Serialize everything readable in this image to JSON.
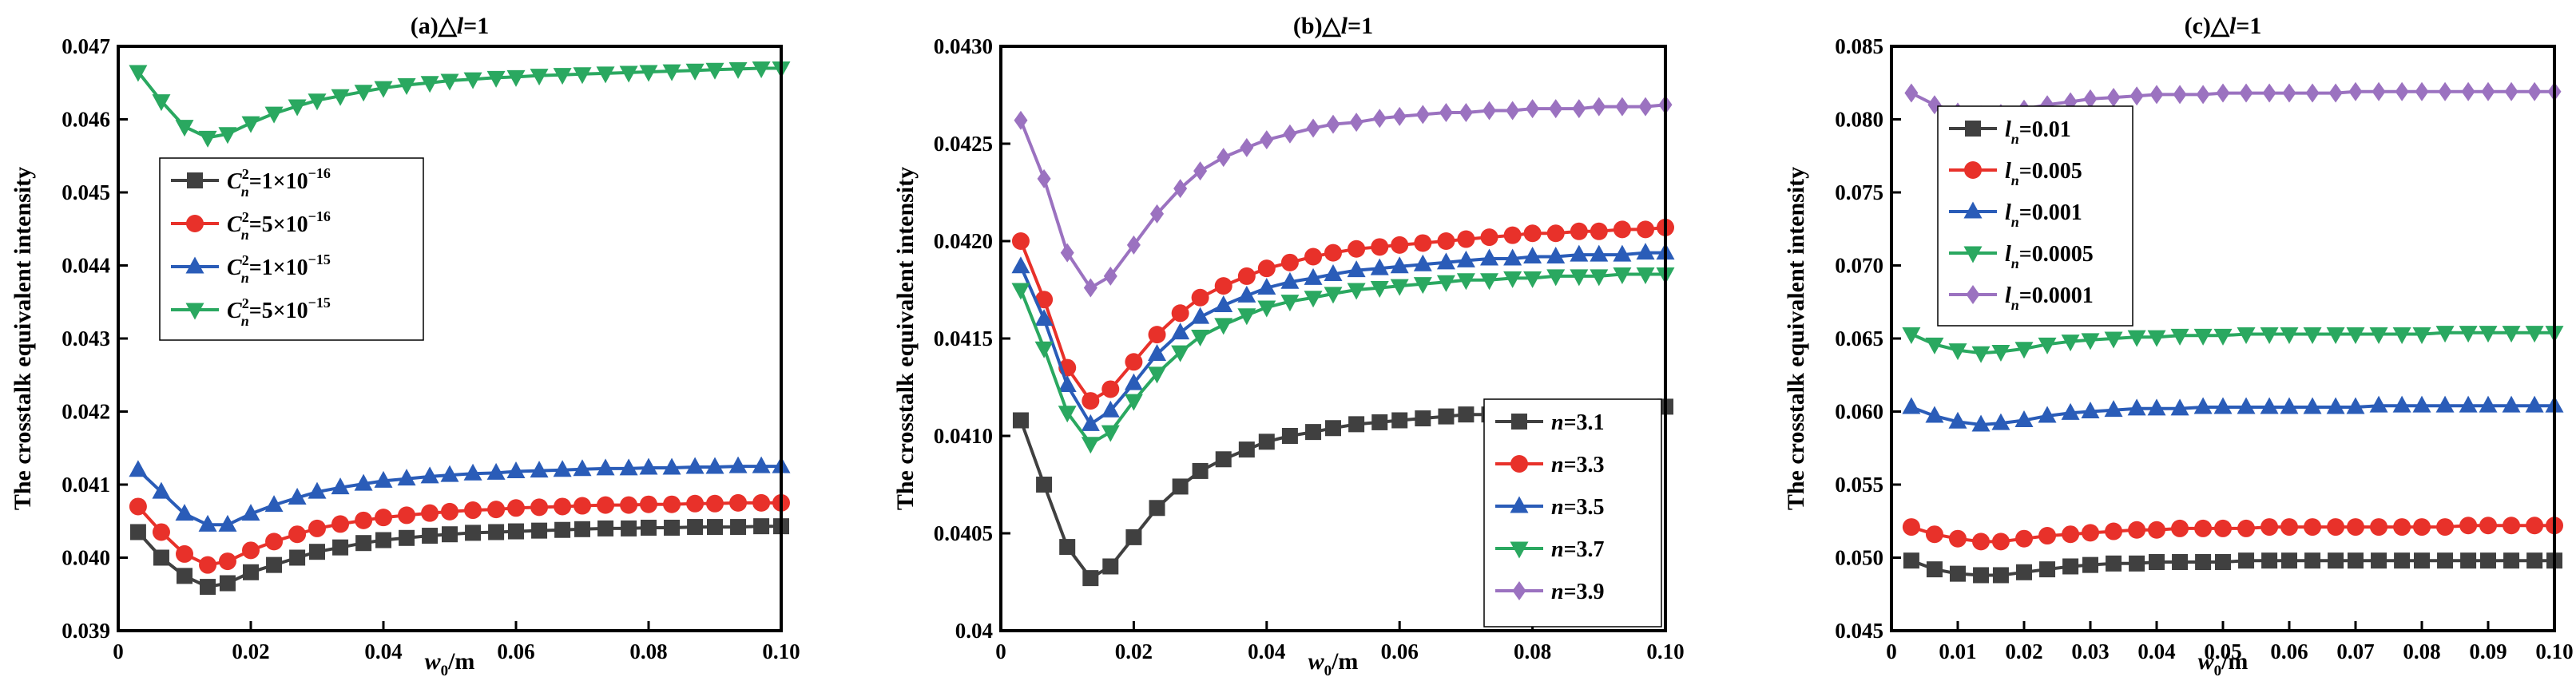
{
  "chart_data": [
    {
      "type": "line",
      "title": "(a)△l=1",
      "xlabel": "w0/m",
      "ylabel": "The crosstalk equivalent intensity",
      "xlim": [
        0,
        0.1
      ],
      "ylim": [
        0.039,
        0.047
      ],
      "xticks": [
        0,
        0.02,
        0.04,
        0.06,
        0.08,
        0.1
      ],
      "xtick_labels": [
        "0",
        "0.02",
        "0.04",
        "0.06",
        "0.08",
        "0.10"
      ],
      "yticks": [
        0.039,
        0.04,
        0.041,
        0.042,
        0.043,
        0.044,
        0.045,
        0.046,
        0.047
      ],
      "ytick_labels": [
        "0.039",
        "0.040",
        "0.041",
        "0.042",
        "0.043",
        "0.044",
        "0.045",
        "0.046",
        "0.047"
      ],
      "legend_position": "middle-left",
      "x": [
        0.003,
        0.0065,
        0.01,
        0.0135,
        0.0165,
        0.02,
        0.0235,
        0.027,
        0.03,
        0.0335,
        0.037,
        0.04,
        0.0435,
        0.047,
        0.05,
        0.0535,
        0.057,
        0.06,
        0.0635,
        0.067,
        0.07,
        0.0735,
        0.077,
        0.08,
        0.0835,
        0.087,
        0.09,
        0.0935,
        0.097,
        0.1
      ],
      "series": [
        {
          "name": "C²n=1×10⁻¹⁶",
          "label_main": "C",
          "label_sup": "2",
          "label_sub": "n",
          "label_rest": "=1×10",
          "label_exp": "−16",
          "color": "#404040",
          "marker": "square",
          "values": [
            0.04035,
            0.04,
            0.03975,
            0.0396,
            0.03965,
            0.0398,
            0.0399,
            0.04,
            0.04008,
            0.04014,
            0.0402,
            0.04024,
            0.04027,
            0.0403,
            0.04032,
            0.04034,
            0.04035,
            0.04036,
            0.04037,
            0.04038,
            0.04039,
            0.0404,
            0.0404,
            0.04041,
            0.04041,
            0.04042,
            0.04042,
            0.04042,
            0.04043,
            0.04043
          ]
        },
        {
          "name": "C²n=5×10⁻¹⁶",
          "label_main": "C",
          "label_sup": "2",
          "label_sub": "n",
          "label_rest": "=5×10",
          "label_exp": "−16",
          "color": "#e8312a",
          "marker": "circle",
          "values": [
            0.0407,
            0.04035,
            0.04005,
            0.0399,
            0.03995,
            0.0401,
            0.04022,
            0.04032,
            0.0404,
            0.04046,
            0.04051,
            0.04055,
            0.04058,
            0.04061,
            0.04063,
            0.04065,
            0.04066,
            0.04068,
            0.04069,
            0.0407,
            0.04071,
            0.04072,
            0.04072,
            0.04073,
            0.04073,
            0.04074,
            0.04074,
            0.04075,
            0.04075,
            0.04075
          ]
        },
        {
          "name": "C²n=1×10⁻¹⁵",
          "label_main": "C",
          "label_sup": "2",
          "label_sub": "n",
          "label_rest": "=1×10",
          "label_exp": "−15",
          "color": "#2a5cb8",
          "marker": "triangle-up",
          "values": [
            0.0412,
            0.0409,
            0.0406,
            0.04045,
            0.04045,
            0.0406,
            0.04072,
            0.04082,
            0.0409,
            0.04096,
            0.04101,
            0.04105,
            0.04108,
            0.04111,
            0.04113,
            0.04115,
            0.04116,
            0.04118,
            0.04119,
            0.0412,
            0.04121,
            0.04122,
            0.04122,
            0.04123,
            0.04123,
            0.04124,
            0.04124,
            0.04125,
            0.04125,
            0.04125
          ]
        },
        {
          "name": "C²n=5×10⁻¹⁵",
          "label_main": "C",
          "label_sup": "2",
          "label_sub": "n",
          "label_rest": "=5×10",
          "label_exp": "−15",
          "color": "#2aa860",
          "marker": "triangle-down",
          "values": [
            0.04665,
            0.04625,
            0.0459,
            0.04575,
            0.0458,
            0.04595,
            0.04608,
            0.04618,
            0.04626,
            0.04632,
            0.04638,
            0.04643,
            0.04647,
            0.0465,
            0.04653,
            0.04655,
            0.04657,
            0.04658,
            0.0466,
            0.04661,
            0.04662,
            0.04663,
            0.04664,
            0.04665,
            0.04666,
            0.04667,
            0.04668,
            0.04669,
            0.0467,
            0.0467
          ]
        }
      ]
    },
    {
      "type": "line",
      "title": "(b)△l=1",
      "xlabel": "w0/m",
      "ylabel": "The crosstalk equivalent intensity",
      "xlim": [
        0,
        0.1
      ],
      "ylim": [
        0.04,
        0.043
      ],
      "xticks": [
        0,
        0.02,
        0.04,
        0.06,
        0.08,
        0.1
      ],
      "xtick_labels": [
        "0",
        "0.02",
        "0.04",
        "0.06",
        "0.08",
        "0.10"
      ],
      "yticks": [
        0.04,
        0.0405,
        0.041,
        0.0415,
        0.042,
        0.0425,
        0.043
      ],
      "ytick_labels": [
        "0.04",
        "0.0405",
        "0.0410",
        "0.0415",
        "0.0420",
        "0.0425",
        "0.0430"
      ],
      "legend_position": "bottom-right",
      "x": [
        0.003,
        0.0065,
        0.01,
        0.0135,
        0.0165,
        0.02,
        0.0235,
        0.027,
        0.03,
        0.0335,
        0.037,
        0.04,
        0.0435,
        0.047,
        0.05,
        0.0535,
        0.057,
        0.06,
        0.0635,
        0.067,
        0.07,
        0.0735,
        0.077,
        0.08,
        0.0835,
        0.087,
        0.09,
        0.0935,
        0.097,
        0.1
      ],
      "series": [
        {
          "name": "n=3.1",
          "label_main": "n",
          "label_rest": "=3.1",
          "color": "#404040",
          "marker": "square",
          "values": [
            0.04108,
            0.04075,
            0.04043,
            0.04027,
            0.04033,
            0.04048,
            0.04063,
            0.04074,
            0.04082,
            0.04088,
            0.04093,
            0.04097,
            0.041,
            0.04102,
            0.04104,
            0.04106,
            0.04107,
            0.04108,
            0.04109,
            0.0411,
            0.04111,
            0.04111,
            0.04112,
            0.04112,
            0.04113,
            0.04113,
            0.04113,
            0.04114,
            0.04114,
            0.04115
          ]
        },
        {
          "name": "n=3.3",
          "label_main": "n",
          "label_rest": "=3.3",
          "color": "#e8312a",
          "marker": "circle",
          "values": [
            0.042,
            0.0417,
            0.04135,
            0.04118,
            0.04124,
            0.04138,
            0.04152,
            0.04163,
            0.04171,
            0.04177,
            0.04182,
            0.04186,
            0.04189,
            0.04192,
            0.04194,
            0.04196,
            0.04197,
            0.04198,
            0.04199,
            0.042,
            0.04201,
            0.04202,
            0.04203,
            0.04204,
            0.04204,
            0.04205,
            0.04205,
            0.04206,
            0.04206,
            0.04207
          ]
        },
        {
          "name": "n=3.5",
          "label_main": "n",
          "label_rest": "=3.5",
          "color": "#2a5cb8",
          "marker": "triangle-up",
          "values": [
            0.04187,
            0.0416,
            0.04126,
            0.04106,
            0.04113,
            0.04127,
            0.04142,
            0.04153,
            0.04161,
            0.04167,
            0.04172,
            0.04176,
            0.04179,
            0.04181,
            0.04183,
            0.04185,
            0.04186,
            0.04187,
            0.04188,
            0.04189,
            0.0419,
            0.04191,
            0.04191,
            0.04192,
            0.04192,
            0.04193,
            0.04193,
            0.04193,
            0.04194,
            0.04194
          ]
        },
        {
          "name": "n=3.7",
          "label_main": "n",
          "label_rest": "=3.7",
          "color": "#2aa860",
          "marker": "triangle-down",
          "values": [
            0.04175,
            0.04145,
            0.04112,
            0.04096,
            0.04102,
            0.04118,
            0.04132,
            0.04143,
            0.04151,
            0.04157,
            0.04162,
            0.04166,
            0.04169,
            0.04171,
            0.04173,
            0.04175,
            0.04176,
            0.04177,
            0.04178,
            0.04179,
            0.0418,
            0.0418,
            0.04181,
            0.04181,
            0.04182,
            0.04182,
            0.04182,
            0.04183,
            0.04183,
            0.04183
          ]
        },
        {
          "name": "n=3.9",
          "label_main": "n",
          "label_rest": "=3.9",
          "color": "#9b72c0",
          "marker": "diamond",
          "values": [
            0.04262,
            0.04232,
            0.04194,
            0.04176,
            0.04182,
            0.04198,
            0.04214,
            0.04227,
            0.04236,
            0.04243,
            0.04248,
            0.04252,
            0.04255,
            0.04258,
            0.0426,
            0.04261,
            0.04263,
            0.04264,
            0.04265,
            0.04266,
            0.04266,
            0.04267,
            0.04267,
            0.04268,
            0.04268,
            0.04268,
            0.04269,
            0.04269,
            0.04269,
            0.0427
          ]
        }
      ]
    },
    {
      "type": "line",
      "title": "(c)△l=1",
      "xlabel": "w0/m",
      "ylabel": "The crosstalk equivalent intensity",
      "xlim": [
        0,
        0.1
      ],
      "ylim": [
        0.045,
        0.085
      ],
      "xticks": [
        0,
        0.01,
        0.02,
        0.03,
        0.04,
        0.05,
        0.06,
        0.07,
        0.08,
        0.09,
        0.1
      ],
      "xtick_labels": [
        "0",
        "0.01",
        "0.02",
        "0.03",
        "0.04",
        "0.05",
        "0.06",
        "0.07",
        "0.08",
        "0.09",
        "0.10"
      ],
      "yticks": [
        0.045,
        0.05,
        0.055,
        0.06,
        0.065,
        0.07,
        0.075,
        0.08,
        0.085
      ],
      "ytick_labels": [
        "0.045",
        "0.050",
        "0.055",
        "0.060",
        "0.065",
        "0.070",
        "0.075",
        "0.080",
        "0.085"
      ],
      "legend_position": "top-left",
      "x": [
        0.003,
        0.0065,
        0.01,
        0.0135,
        0.0165,
        0.02,
        0.0235,
        0.027,
        0.03,
        0.0335,
        0.037,
        0.04,
        0.0435,
        0.047,
        0.05,
        0.0535,
        0.057,
        0.06,
        0.0635,
        0.067,
        0.07,
        0.0735,
        0.077,
        0.08,
        0.0835,
        0.087,
        0.09,
        0.0935,
        0.097,
        0.1
      ],
      "series": [
        {
          "name": "ln=0.01",
          "label_main": "l",
          "label_sub": "n",
          "label_rest": "=0.01",
          "color": "#404040",
          "marker": "square",
          "values": [
            0.0498,
            0.0492,
            0.0489,
            0.0488,
            0.0488,
            0.049,
            0.0492,
            0.0494,
            0.0495,
            0.0496,
            0.0496,
            0.0497,
            0.0497,
            0.0497,
            0.0497,
            0.0498,
            0.0498,
            0.0498,
            0.0498,
            0.0498,
            0.0498,
            0.0498,
            0.0498,
            0.0498,
            0.0498,
            0.0498,
            0.0498,
            0.0498,
            0.0498,
            0.0498
          ]
        },
        {
          "name": "ln=0.005",
          "label_main": "l",
          "label_sub": "n",
          "label_rest": "=0.005",
          "color": "#e8312a",
          "marker": "circle",
          "values": [
            0.0521,
            0.0516,
            0.0513,
            0.0511,
            0.0511,
            0.0513,
            0.0515,
            0.0516,
            0.0517,
            0.0518,
            0.0519,
            0.0519,
            0.052,
            0.052,
            0.052,
            0.052,
            0.0521,
            0.0521,
            0.0521,
            0.0521,
            0.0521,
            0.0521,
            0.0521,
            0.0521,
            0.0521,
            0.0522,
            0.0522,
            0.0522,
            0.0522,
            0.0522
          ]
        },
        {
          "name": "ln=0.001",
          "label_main": "l",
          "label_sub": "n",
          "label_rest": "=0.001",
          "color": "#2a5cb8",
          "marker": "triangle-up",
          "values": [
            0.0603,
            0.0597,
            0.0593,
            0.0591,
            0.0592,
            0.0594,
            0.0597,
            0.0599,
            0.06,
            0.0601,
            0.0602,
            0.0602,
            0.0602,
            0.0603,
            0.0603,
            0.0603,
            0.0603,
            0.0603,
            0.0603,
            0.0603,
            0.0603,
            0.0604,
            0.0604,
            0.0604,
            0.0604,
            0.0604,
            0.0604,
            0.0604,
            0.0604,
            0.0604
          ]
        },
        {
          "name": "ln=0.0005",
          "label_main": "l",
          "label_sub": "n",
          "label_rest": "=0.0005",
          "color": "#2aa860",
          "marker": "triangle-down",
          "values": [
            0.0653,
            0.0646,
            0.0642,
            0.064,
            0.0641,
            0.0643,
            0.0646,
            0.0648,
            0.0649,
            0.065,
            0.0651,
            0.0651,
            0.0652,
            0.0652,
            0.0652,
            0.0653,
            0.0653,
            0.0653,
            0.0653,
            0.0653,
            0.0653,
            0.0653,
            0.0653,
            0.0653,
            0.0654,
            0.0654,
            0.0654,
            0.0654,
            0.0654,
            0.0654
          ]
        },
        {
          "name": "ln=0.0001",
          "label_main": "l",
          "label_sub": "n",
          "label_rest": "=0.0001",
          "color": "#9b72c0",
          "marker": "diamond",
          "values": [
            0.0818,
            0.081,
            0.0805,
            0.0803,
            0.0804,
            0.0807,
            0.081,
            0.0812,
            0.0814,
            0.0815,
            0.0816,
            0.0817,
            0.0817,
            0.0817,
            0.0818,
            0.0818,
            0.0818,
            0.0818,
            0.0818,
            0.0818,
            0.0819,
            0.0819,
            0.0819,
            0.0819,
            0.0819,
            0.0819,
            0.0819,
            0.0819,
            0.0819,
            0.0819
          ]
        }
      ]
    }
  ]
}
